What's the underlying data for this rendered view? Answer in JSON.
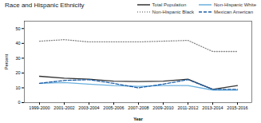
{
  "chart_data": {
    "type": "line",
    "title": "Race and Hispanic Ethnicity",
    "xlabel": "Year",
    "ylabel": "Percent",
    "categories": [
      "1999-2000",
      "2001-2002",
      "2003-2004",
      "2005-2006",
      "2007-2008",
      "2009-2010",
      "2011-2012",
      "2013-2014",
      "2015-2016"
    ],
    "series": [
      {
        "name": "Total Population",
        "color": "#333333",
        "line_style": "solid",
        "values": [
          17.8,
          16.5,
          15.8,
          14.5,
          14.2,
          14.5,
          15.8,
          9.0,
          11.5
        ]
      },
      {
        "name": "Non-Hispanic White",
        "color": "#6ab0de",
        "line_style": "solid",
        "values": [
          13.0,
          13.5,
          12.5,
          11.5,
          11.0,
          11.5,
          11.5,
          8.5,
          8.5
        ]
      },
      {
        "name": "Non-Hispanic Black",
        "color": "#888888",
        "line_style": "dotted",
        "values": [
          41.5,
          42.5,
          41.0,
          41.0,
          41.0,
          41.5,
          42.0,
          34.5,
          34.5
        ]
      },
      {
        "name": "Mexican American",
        "color": "#1f5fa6",
        "line_style": "dashed",
        "values": [
          13.0,
          15.0,
          15.5,
          13.0,
          10.0,
          12.5,
          15.5,
          9.0,
          9.0
        ]
      }
    ],
    "ylim": [
      0,
      55
    ],
    "yticks": [
      0,
      10,
      20,
      30,
      40,
      50
    ],
    "grid": false,
    "legend": "upper right"
  }
}
